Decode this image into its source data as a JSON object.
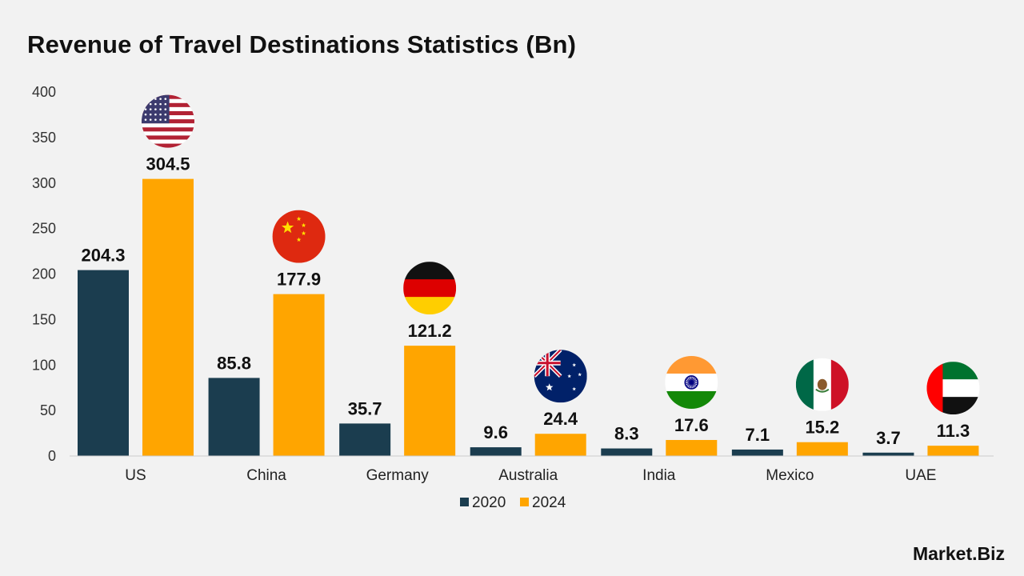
{
  "chart_data": {
    "type": "bar",
    "title": "Revenue of Travel Destinations Statistics (Bn)",
    "xlabel": "",
    "ylabel": "",
    "categories": [
      "US",
      "China",
      "Germany",
      "Australia",
      "India",
      "Mexico",
      "UAE"
    ],
    "series": [
      {
        "name": "2020",
        "color": "#1b3d4f",
        "values": [
          204.3,
          85.8,
          35.7,
          9.6,
          8.3,
          7.1,
          3.7
        ]
      },
      {
        "name": "2024",
        "color": "#ffa500",
        "values": [
          304.5,
          177.9,
          121.2,
          24.4,
          17.6,
          15.2,
          11.3
        ]
      }
    ],
    "ylim": [
      0,
      400
    ],
    "yticks": [
      0,
      50,
      100,
      150,
      200,
      250,
      300,
      350,
      400
    ],
    "grid": false,
    "legend": "bottom-center",
    "flag_icons": [
      "us-flag-icon",
      "china-flag-icon",
      "germany-flag-icon",
      "australia-flag-icon",
      "india-flag-icon",
      "mexico-flag-icon",
      "uae-flag-icon"
    ]
  },
  "branding": {
    "logo_text": "Market.Biz"
  }
}
